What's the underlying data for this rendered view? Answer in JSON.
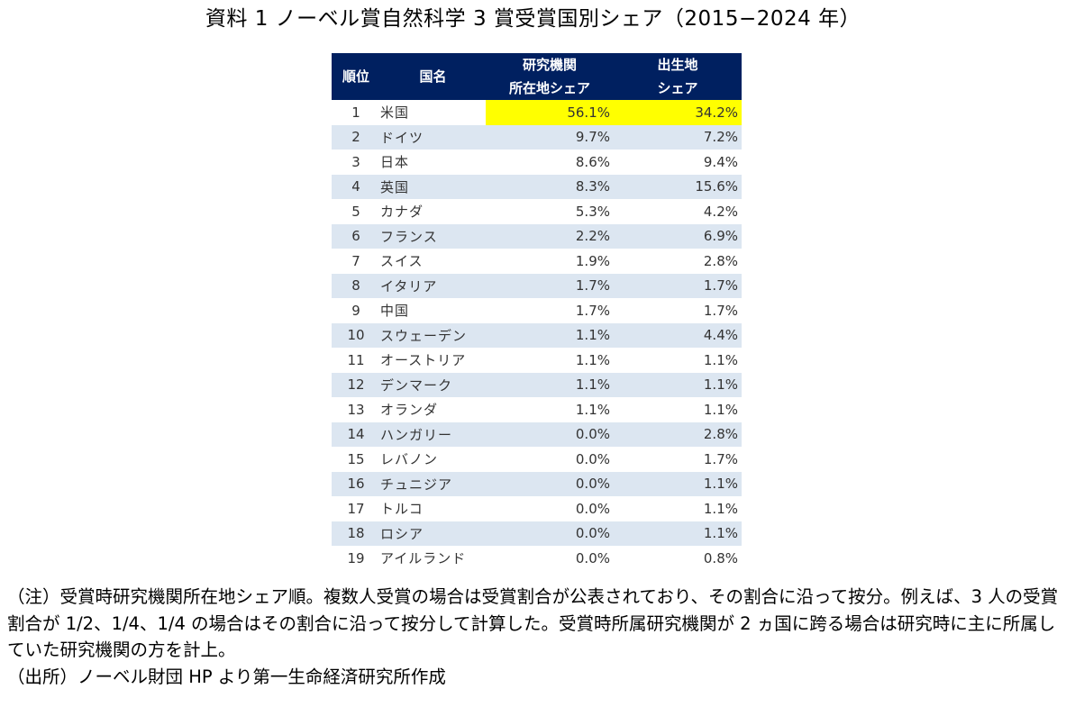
{
  "title": "資料 1  ノーベル賞自然科学 3 賞受賞国別シェア（2015−2024 年）",
  "table": {
    "headers": {
      "rank": "順位",
      "country": "国名",
      "institution_line1": "研究機関",
      "institution_line2": "所在地シェア",
      "birthplace_line1": "出生地",
      "birthplace_line2": "シェア"
    },
    "rows": [
      {
        "rank": "1",
        "country": "米国",
        "institution_share": "56.1%",
        "birthplace_share": "34.2%"
      },
      {
        "rank": "2",
        "country": "ドイツ",
        "institution_share": "9.7%",
        "birthplace_share": "7.2%"
      },
      {
        "rank": "3",
        "country": "日本",
        "institution_share": "8.6%",
        "birthplace_share": "9.4%"
      },
      {
        "rank": "4",
        "country": "英国",
        "institution_share": "8.3%",
        "birthplace_share": "15.6%"
      },
      {
        "rank": "5",
        "country": "カナダ",
        "institution_share": "5.3%",
        "birthplace_share": "4.2%"
      },
      {
        "rank": "6",
        "country": "フランス",
        "institution_share": "2.2%",
        "birthplace_share": "6.9%"
      },
      {
        "rank": "7",
        "country": "スイス",
        "institution_share": "1.9%",
        "birthplace_share": "2.8%"
      },
      {
        "rank": "8",
        "country": "イタリア",
        "institution_share": "1.7%",
        "birthplace_share": "1.7%"
      },
      {
        "rank": "9",
        "country": "中国",
        "institution_share": "1.7%",
        "birthplace_share": "1.7%"
      },
      {
        "rank": "10",
        "country": "スウェーデン",
        "institution_share": "1.1%",
        "birthplace_share": "4.4%"
      },
      {
        "rank": "11",
        "country": "オーストリア",
        "institution_share": "1.1%",
        "birthplace_share": "1.1%"
      },
      {
        "rank": "12",
        "country": "デンマーク",
        "institution_share": "1.1%",
        "birthplace_share": "1.1%"
      },
      {
        "rank": "13",
        "country": "オランダ",
        "institution_share": "1.1%",
        "birthplace_share": "1.1%"
      },
      {
        "rank": "14",
        "country": "ハンガリー",
        "institution_share": "0.0%",
        "birthplace_share": "2.8%"
      },
      {
        "rank": "15",
        "country": "レバノン",
        "institution_share": "0.0%",
        "birthplace_share": "1.7%"
      },
      {
        "rank": "16",
        "country": "チュニジア",
        "institution_share": "0.0%",
        "birthplace_share": "1.1%"
      },
      {
        "rank": "17",
        "country": "トルコ",
        "institution_share": "0.0%",
        "birthplace_share": "1.1%"
      },
      {
        "rank": "18",
        "country": "ロシア",
        "institution_share": "0.0%",
        "birthplace_share": "1.1%"
      },
      {
        "rank": "19",
        "country": "アイルランド",
        "institution_share": "0.0%",
        "birthplace_share": "0.8%"
      }
    ],
    "colors": {
      "header_bg": "#002060",
      "stripe_bg": "#dce6f1",
      "highlight_bg": "#ffff00"
    }
  },
  "notes": {
    "note": "（注）受賞時研究機関所在地シェア順。複数人受賞の場合は受賞割合が公表されており、その割合に沿って按分。例えば、3 人の受賞割合が 1/2、1/4、1/4 の場合はその割合に沿って按分して計算した。受賞時所属研究機関が 2 ヵ国に跨る場合は研究時に主に所属していた研究機関の方を計上。",
    "source": "（出所）ノーベル財団 HP より第一生命経済研究所作成"
  }
}
